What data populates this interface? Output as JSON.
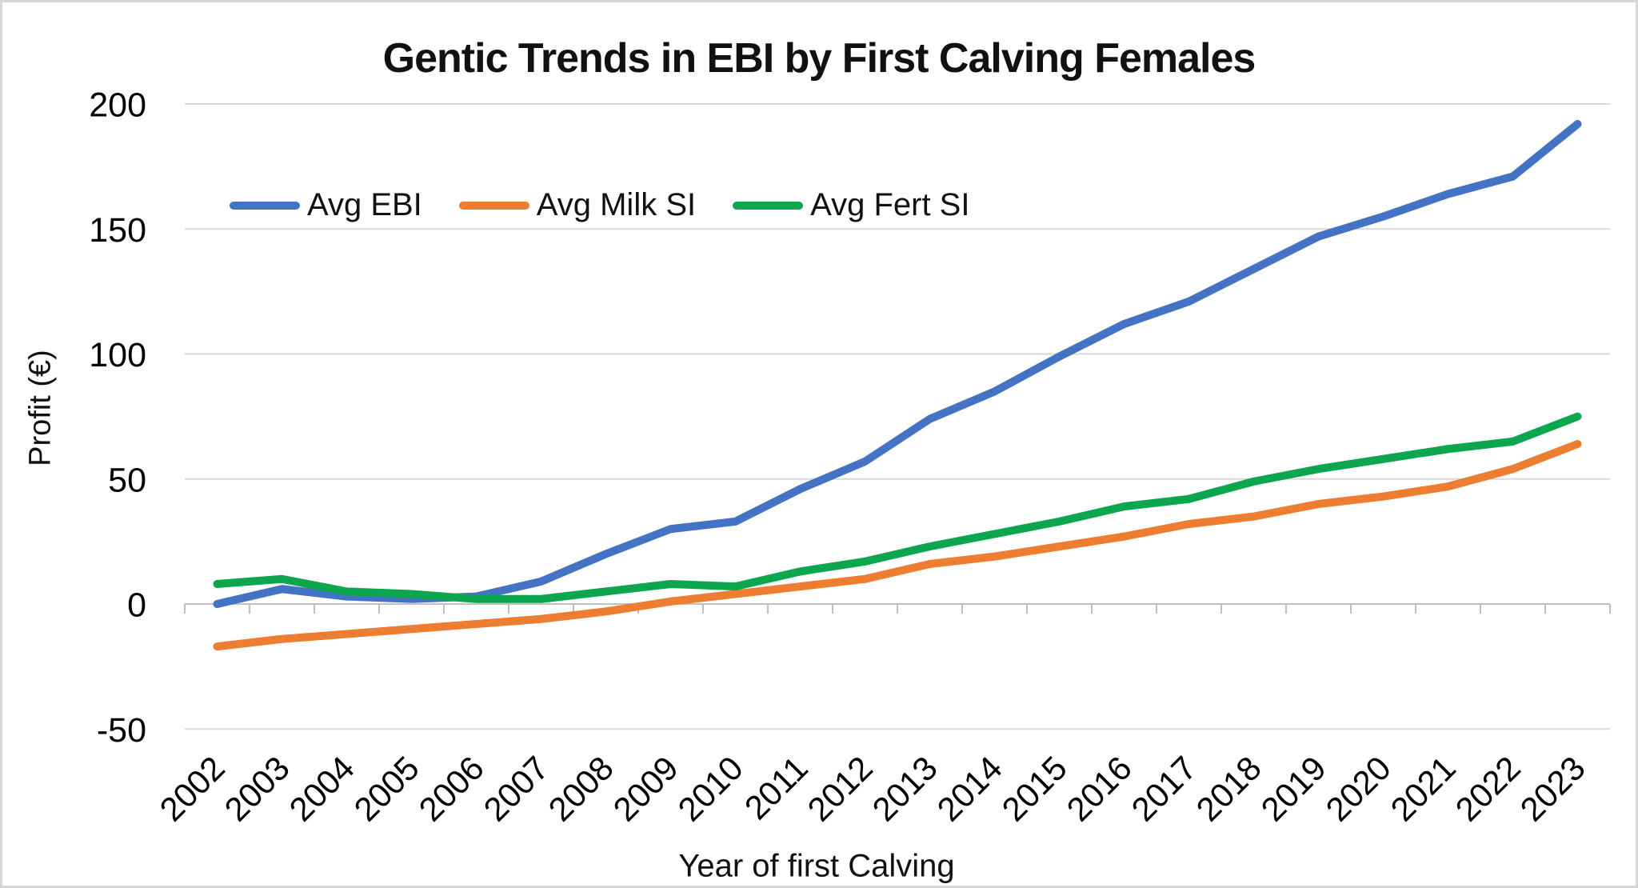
{
  "chart_data": {
    "type": "line",
    "title": "Gentic Trends in EBI by First Calving Females",
    "xlabel": "Year of first Calving",
    "ylabel": "Profit (€)",
    "categories": [
      "2002",
      "2003",
      "2004",
      "2005",
      "2006",
      "2007",
      "2008",
      "2009",
      "2010",
      "2011",
      "2012",
      "2013",
      "2014",
      "2015",
      "2016",
      "2017",
      "2018",
      "2019",
      "2020",
      "2021",
      "2022",
      "2023"
    ],
    "series": [
      {
        "name": "Avg EBI",
        "color": "#4472C4",
        "values": [
          0,
          6,
          3,
          2,
          3,
          9,
          20,
          30,
          33,
          46,
          57,
          74,
          85,
          99,
          112,
          121,
          134,
          147,
          155,
          164,
          171,
          192
        ]
      },
      {
        "name": "Avg Milk SI",
        "color": "#ED7D31",
        "values": [
          -17,
          -14,
          -12,
          -10,
          -8,
          -6,
          -3,
          1,
          4,
          7,
          10,
          16,
          19,
          23,
          27,
          32,
          35,
          40,
          43,
          47,
          54,
          64
        ]
      },
      {
        "name": "Avg Fert SI",
        "color": "#0CA64F",
        "values": [
          8,
          10,
          5,
          4,
          2,
          2,
          5,
          8,
          7,
          13,
          17,
          23,
          28,
          33,
          39,
          42,
          49,
          54,
          58,
          62,
          65,
          75
        ]
      }
    ],
    "ylim": [
      -50,
      200
    ],
    "yticks": [
      200,
      150,
      100,
      50,
      0,
      -50
    ],
    "grid": true,
    "gridline_color": "#D9D9D9",
    "axis_color": "#BFBFBF",
    "text_color": "#000000",
    "legend_position": "top-left-inside",
    "x_tick_label_rotation_deg": -45
  }
}
